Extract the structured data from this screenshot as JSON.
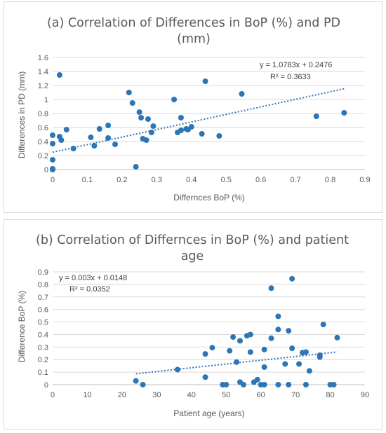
{
  "chart_data": [
    {
      "type": "scatter",
      "title": "(a) Correlation of Differences in BoP (%) and PD (mm)",
      "title_lines": [
        "(a) Correlation of Differences in BoP (%) and PD",
        "(mm)"
      ],
      "xlabel": "Differnces BoP (%)",
      "ylabel": "Differences in PD (mm)",
      "xlim": [
        0,
        0.9
      ],
      "ylim": [
        0,
        1.6
      ],
      "xticks": [
        "0",
        "0.1",
        "0.2",
        "0.3",
        "0.4",
        "0.5",
        "0.6",
        "0.7",
        "0.8",
        "0.9"
      ],
      "yticks": [
        "0",
        "0.2",
        "0.4",
        "0.6",
        "0.8",
        "1",
        "1.2",
        "1.4",
        "1.6"
      ],
      "grid": "horizontal",
      "trendline": {
        "type": "linear",
        "slope": 1.0783,
        "intercept": 0.2476,
        "equation": "y = 1.0783x + 0.2476",
        "r2": "R² = 0.3633"
      },
      "points": [
        [
          0.0,
          0.0
        ],
        [
          0.0,
          0.01
        ],
        [
          0.0,
          0.14
        ],
        [
          0.0,
          0.37
        ],
        [
          0.0,
          0.49
        ],
        [
          0.02,
          1.35
        ],
        [
          0.02,
          0.47
        ],
        [
          0.025,
          0.42
        ],
        [
          0.04,
          0.57
        ],
        [
          0.06,
          0.3
        ],
        [
          0.11,
          0.46
        ],
        [
          0.12,
          0.34
        ],
        [
          0.135,
          0.58
        ],
        [
          0.16,
          0.63
        ],
        [
          0.16,
          0.45
        ],
        [
          0.18,
          0.36
        ],
        [
          0.22,
          1.1
        ],
        [
          0.23,
          0.95
        ],
        [
          0.24,
          0.04
        ],
        [
          0.25,
          0.82
        ],
        [
          0.255,
          0.74
        ],
        [
          0.26,
          0.44
        ],
        [
          0.27,
          0.42
        ],
        [
          0.275,
          0.72
        ],
        [
          0.285,
          0.53
        ],
        [
          0.29,
          0.62
        ],
        [
          0.35,
          1.0
        ],
        [
          0.36,
          0.53
        ],
        [
          0.37,
          0.74
        ],
        [
          0.37,
          0.56
        ],
        [
          0.385,
          0.58
        ],
        [
          0.39,
          0.57
        ],
        [
          0.4,
          0.61
        ],
        [
          0.43,
          0.51
        ],
        [
          0.44,
          1.26
        ],
        [
          0.48,
          0.48
        ],
        [
          0.545,
          1.08
        ],
        [
          0.76,
          0.76
        ],
        [
          0.84,
          0.81
        ]
      ]
    },
    {
      "type": "scatter",
      "title": "(b) Correlation of Differnces in BoP (%) and patient age",
      "title_lines": [
        "(b) Correlation of Differnces in BoP (%) and patient",
        "age"
      ],
      "xlabel": "Patient age (years)",
      "ylabel": "Difference BoP (%)",
      "xlim": [
        0,
        90
      ],
      "ylim": [
        0,
        0.9
      ],
      "xticks": [
        "0",
        "10",
        "20",
        "30",
        "40",
        "50",
        "60",
        "70",
        "80",
        "90"
      ],
      "yticks": [
        "0",
        "0.1",
        "0.2",
        "0.3",
        "0.4",
        "0.5",
        "0.6",
        "0.7",
        "0.8",
        "0.9"
      ],
      "grid": "horizontal",
      "trendline": {
        "type": "linear",
        "slope": 0.003,
        "intercept": 0.0148,
        "equation": "y = 0.003x + 0.0148",
        "r2": "R² = 0.0352"
      },
      "points": [
        [
          24,
          0.03
        ],
        [
          26,
          0.0
        ],
        [
          36,
          0.12
        ],
        [
          44,
          0.06
        ],
        [
          44,
          0.245
        ],
        [
          46,
          0.295
        ],
        [
          49,
          0.0
        ],
        [
          50,
          0.0
        ],
        [
          51,
          0.27
        ],
        [
          52,
          0.38
        ],
        [
          53,
          0.18
        ],
        [
          54,
          0.35
        ],
        [
          54,
          0.02
        ],
        [
          55,
          0.0
        ],
        [
          56,
          0.39
        ],
        [
          57,
          0.4
        ],
        [
          57,
          0.26
        ],
        [
          58,
          0.02
        ],
        [
          59,
          0.04
        ],
        [
          60,
          0.0
        ],
        [
          61,
          0.0
        ],
        [
          61,
          0.14
        ],
        [
          61,
          0.28
        ],
        [
          63,
          0.77
        ],
        [
          63,
          0.37
        ],
        [
          65,
          0.545
        ],
        [
          65,
          0.44
        ],
        [
          65,
          0.0
        ],
        [
          67,
          0.165
        ],
        [
          68,
          0.0
        ],
        [
          68,
          0.43
        ],
        [
          69,
          0.845
        ],
        [
          69,
          0.29
        ],
        [
          71,
          0.165
        ],
        [
          72,
          0.255
        ],
        [
          73,
          0.0
        ],
        [
          73,
          0.26
        ],
        [
          74,
          0.11
        ],
        [
          77,
          0.22
        ],
        [
          77,
          0.235
        ],
        [
          78,
          0.48
        ],
        [
          80,
          0.0
        ],
        [
          81,
          0.0
        ],
        [
          82,
          0.375
        ]
      ]
    }
  ]
}
